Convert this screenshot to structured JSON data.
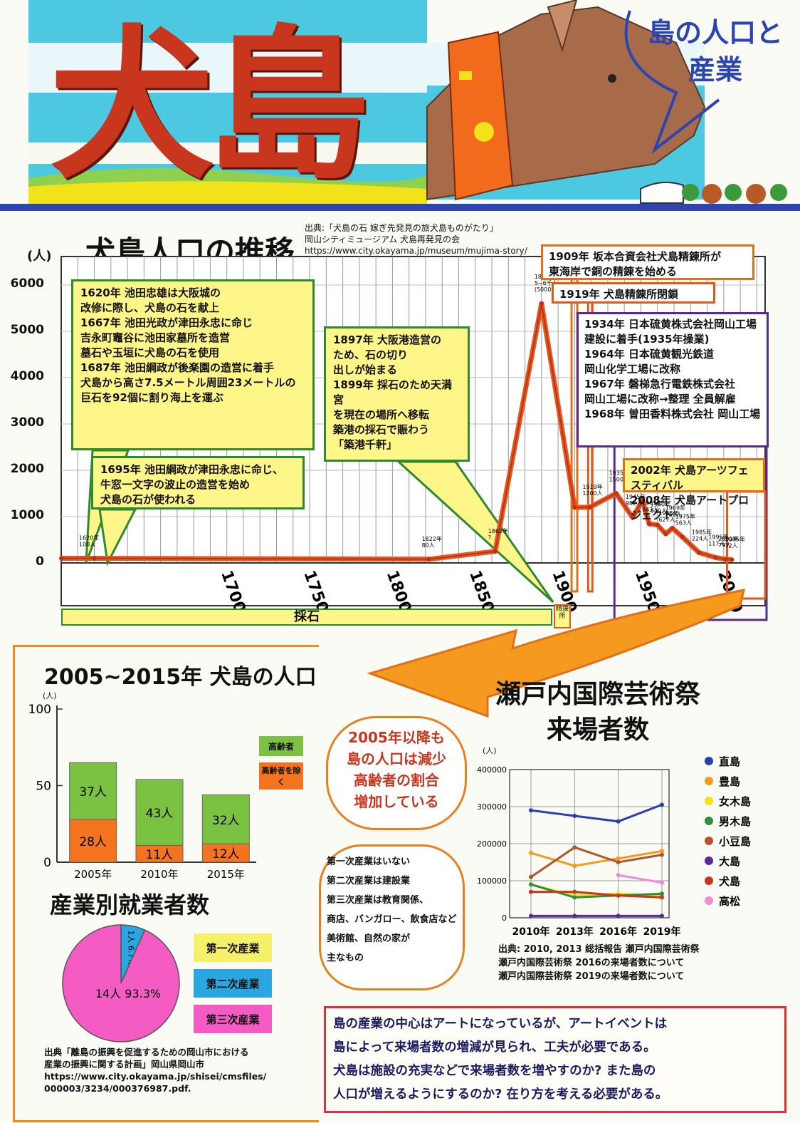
{
  "header": {
    "title": "犬島",
    "bubble": "島の人口と\n産業"
  },
  "colors": {
    "title": "#c8361e",
    "sky": "#4cc9e0",
    "stripe": "#2d45b0",
    "dog": "#a86b4a",
    "collar": "#f26b1d"
  },
  "population_chart": {
    "title": "犬島人口の推移",
    "source": "出典:「犬島の石 嫁ぎ先発見の旅犬島ものがたり」\n岡山シティミュージアム 犬島再発見の会\nhttps://www.city.okayama.jp/museum/mujima-story/\nisland_05.htm",
    "unit": "(人)",
    "band_saiseki": "採石",
    "band_seiren": "精錬所",
    "annotations": {
      "n1620": "1620年 池田忠雄は大阪城の\n改修に際し、犬島の石を献上\n1667年 池田光政が津田永忠に命じ\n吉永町竈谷に池田家墓所を造営\n墓石や玉垣に犬島の石を使用\n1687年 池田綱政が後楽園の造営に着手\n犬島から高さ7.5メートル周囲23メートルの\n巨石を92個に割り海上を運ぶ",
      "n1695": "1695年 池田綱政が津田永忠に命じ、\n牛窓一文字の波止の造営を始め\n犬島の石が使われる",
      "n1897": "1897年 大阪港造営の\nため、石の切り\n出しが始まる\n1899年 採石のため天満宮\nを現在の場所へ移転\n築港の採石で賑わう\n「築港千軒」",
      "n1909": "1909年 坂本合資会社犬島精錬所が\n東海岸で銅の精錬を始める",
      "n1919": "1919年 犬島精錬所閉鎖",
      "n1934": "1934年 日本硫黄株式会社岡山工場\n建設に着手(1935年操業)\n1964年 日本硫黄観光鉄道\n岡山化学工場に改称\n1967年 磐梯急行電鉄株式会社\n岡山工場に改称→整理 全員解雇\n1968年 曽田香料株式会社 岡山工場",
      "n2002": "2002年 犬島アーツフェスティバル\n2008年 犬島アートプロジェクト"
    },
    "point_labels": [
      "1620年\n100人",
      "1822年\n80人",
      "1862年\n?",
      "1890年\n5~6千人\n(5000人推計)",
      "1919年\n1200人",
      "1935年\n1500人",
      "1945年\n982人",
      "1951年\n1350人",
      "1955年\n843人",
      "1960年\n820人",
      "1965年\n627人",
      "1969年\n750人",
      "1975年\n563人",
      "1985年\n224人",
      "1995年\n117人",
      "2001年\n79人",
      "2005年\n72人"
    ]
  },
  "chart_data": [
    {
      "type": "line",
      "title": "犬島人口の推移",
      "ylabel": "(人)",
      "x": [
        1600,
        1620,
        1822,
        1862,
        1890,
        1910,
        1919,
        1935,
        1945,
        1951,
        1955,
        1960,
        1965,
        1969,
        1975,
        1985,
        1995,
        2001,
        2005
      ],
      "values": [
        100,
        100,
        80,
        250,
        5600,
        1200,
        1200,
        1500,
        982,
        1350,
        843,
        820,
        627,
        750,
        563,
        224,
        117,
        79,
        72
      ],
      "xticks": [
        "1700",
        "1750",
        "1800",
        "1850",
        "1900",
        "1950",
        "2000"
      ],
      "yticks": [
        "0",
        "1000",
        "2000",
        "3000",
        "4000",
        "5000",
        "6000"
      ],
      "ylim": [
        0,
        6000
      ],
      "xlim": [
        1600,
        2025
      ]
    },
    {
      "type": "bar",
      "title": "2005~2015年 犬島の人口",
      "ylabel": "(人)",
      "categories": [
        "2005年",
        "2010年",
        "2015年"
      ],
      "series": [
        {
          "name": "高齢者を除く",
          "values": [
            28,
            11,
            12
          ],
          "labels": [
            "28人",
            "11人",
            "12人"
          ],
          "color": "#f4731f"
        },
        {
          "name": "高齢者",
          "values": [
            37,
            43,
            32
          ],
          "labels": [
            "37人",
            "43人",
            "32人"
          ],
          "color": "#7cc242"
        }
      ],
      "yticks": [
        "0",
        "50",
        "100"
      ],
      "ylim": [
        0,
        100
      ]
    },
    {
      "type": "pie",
      "title": "産業別就業者数",
      "slices": [
        {
          "name": "第一次産業",
          "value": 0,
          "color": "#f4f06a"
        },
        {
          "name": "第二次産業",
          "value": 6.7,
          "label": "1人 6.7%",
          "color": "#2aa6e0"
        },
        {
          "name": "第三次産業",
          "value": 93.3,
          "label": "14人 93.3%",
          "color": "#f45cc4"
        }
      ]
    },
    {
      "type": "line",
      "title": "瀬戸内国際芸術祭\n来場者数",
      "ylabel": "(人)",
      "categories": [
        "2010年",
        "2013年",
        "2016年",
        "2019年"
      ],
      "yticks": [
        "0",
        "100000",
        "200000",
        "300000",
        "400000"
      ],
      "ylim": [
        0,
        400000
      ],
      "series": [
        {
          "name": "直島",
          "color": "#2a3fb0",
          "values": [
            290000,
            275000,
            260000,
            305000
          ]
        },
        {
          "name": "豊島",
          "color": "#f59a1f",
          "values": [
            175000,
            140000,
            160000,
            180000
          ]
        },
        {
          "name": "女木島",
          "color": "#f2e21a",
          "values": [
            90000,
            60000,
            65000,
            60000
          ]
        },
        {
          "name": "男木島",
          "color": "#2f8f3a",
          "values": [
            90000,
            55000,
            60000,
            65000
          ]
        },
        {
          "name": "小豆島",
          "color": "#b5542a",
          "values": [
            110000,
            190000,
            150000,
            170000
          ]
        },
        {
          "name": "大島",
          "color": "#5a2a90",
          "values": [
            5000,
            5000,
            5000,
            5000
          ]
        },
        {
          "name": "犬島",
          "color": "#c8361e",
          "values": [
            70000,
            70000,
            60000,
            55000
          ]
        },
        {
          "name": "高松",
          "color": "#f28ad8",
          "values": [
            null,
            null,
            115000,
            95000
          ]
        }
      ]
    }
  ],
  "bar_section": {
    "title": "2005~2015年 犬島の人口",
    "unit": "(人)",
    "legend_elderly": "高齢者",
    "legend_nonelderly": "高齢者を除く",
    "cloud_text": "2005年以降も\n島の人口は減少\n高齢者の割合\n増加している"
  },
  "pie_section": {
    "title": "産業別就業者数",
    "legend": [
      "第一次産業",
      "第二次産業",
      "第三次産業"
    ],
    "source": "出典「離島の振興を促進するための岡山市における\n産業の振興に関する計画」岡山県岡山市\nhttps://www.city.okayama.jp/shisei/cmsfiles/\n000003/3234/000376987.pdf.",
    "cloud_text": "第一次産業はいない\n第二次産業は建設業\n第三次産業は教育関係、\n商店、バンガロー、飲食店など\n美術館、自然の家が\n主なもの"
  },
  "visitor_section": {
    "title": "瀬戸内国際芸術祭\n来場者数",
    "unit": "(人)",
    "source": "出典: 2010, 2013 総括報告 瀬戸内国際芸術祭\n瀬戸内国際芸術祭 2016の来場者数について\n瀬戸内国際芸術祭 2019の来場者数について"
  },
  "conclusion": "島の産業の中心はアートになっているが、アートイベントは\n島によって来場者数の増減が見られ、工夫が必要である。\n犬島は施設の充実などで来場者数を増やすのか? また島の\n人口が増えるようにするのか? 在り方を考える必要がある。"
}
